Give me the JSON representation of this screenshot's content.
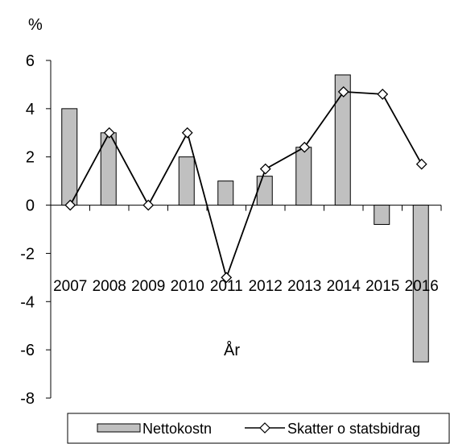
{
  "chart_data": {
    "type": "bar",
    "title": "",
    "ylabel": "%",
    "xlabel": "År",
    "ylim": [
      -8,
      6
    ],
    "yticks": [
      "6",
      "4",
      "2",
      "0",
      "-2",
      "-4",
      "-6",
      "-8"
    ],
    "ytick_values": [
      6,
      4,
      2,
      0,
      -2,
      -4,
      -6,
      -8
    ],
    "categories": [
      "2007",
      "2008",
      "2009",
      "2010",
      "2011",
      "2012",
      "2013",
      "2014",
      "2015",
      "2016"
    ],
    "grid": false,
    "legend_position": "bottom",
    "series": [
      {
        "name": "Nettokostn",
        "type": "bar",
        "color": "#c0c0c0",
        "values": [
          4.0,
          3.0,
          0.0,
          2.0,
          1.0,
          1.2,
          2.4,
          5.4,
          -0.8,
          -6.5
        ]
      },
      {
        "name": "Skatter o statsbidrag",
        "type": "line",
        "marker": "diamond",
        "color": "#000000",
        "values": [
          0.0,
          3.0,
          0.0,
          3.0,
          -3.0,
          1.5,
          2.4,
          4.7,
          4.6,
          1.7
        ]
      }
    ]
  }
}
